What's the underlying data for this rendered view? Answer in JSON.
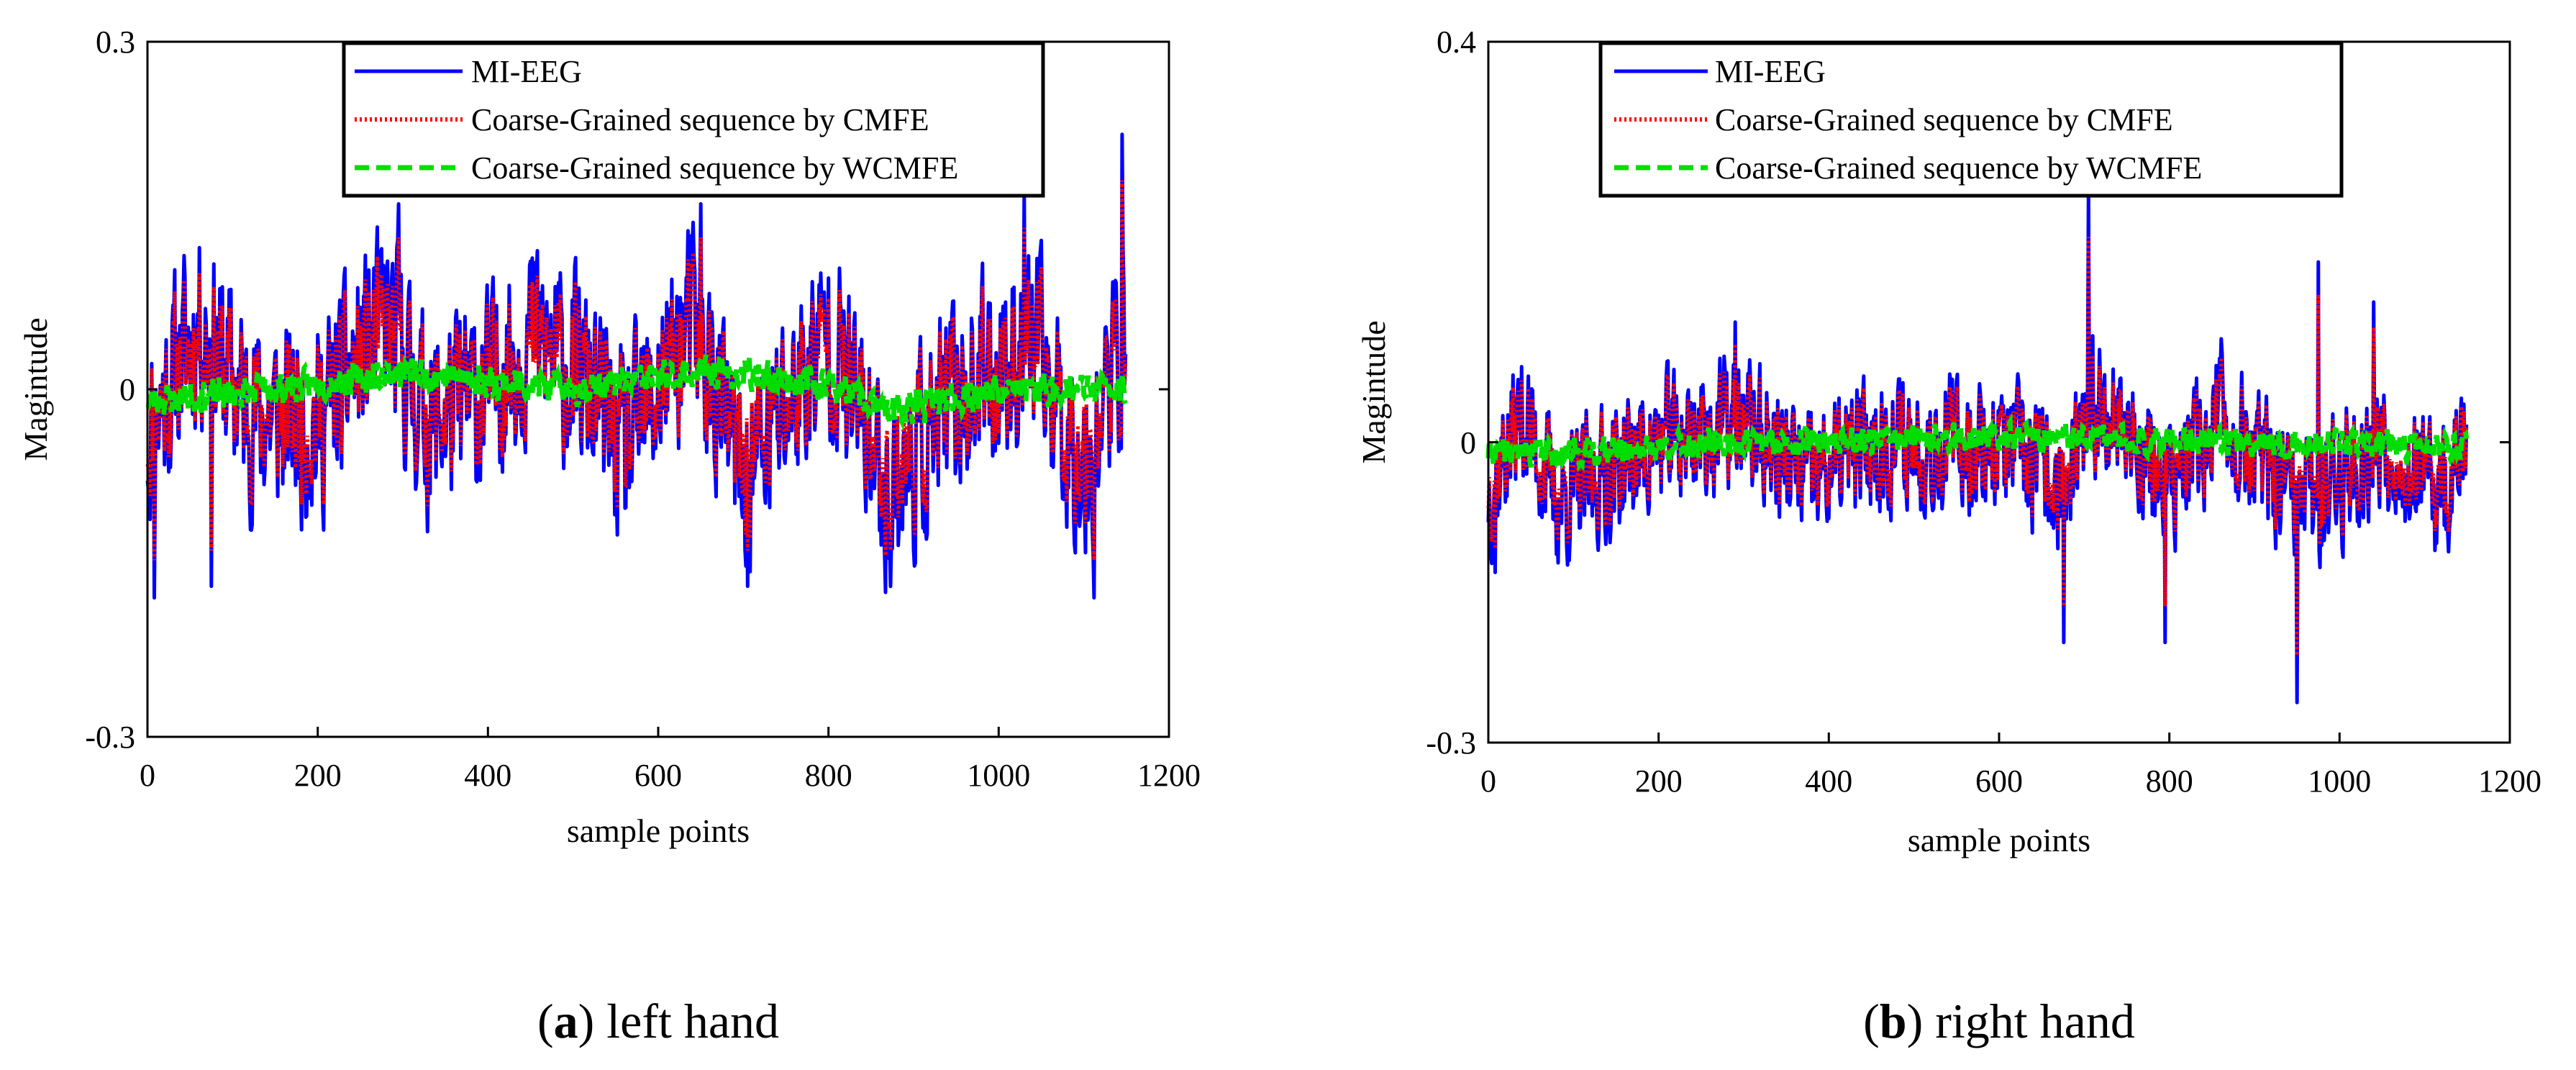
{
  "chart_data": [
    {
      "id": "a",
      "type": "line",
      "xlabel": "sample points",
      "ylabel": "Magintude",
      "xlim": [
        0,
        1200
      ],
      "ylim": [
        -0.3,
        0.3
      ],
      "xticks": [
        0,
        200,
        400,
        600,
        800,
        1000,
        1200
      ],
      "xtick_labels": [
        "0",
        "200",
        "400",
        "600",
        "800",
        "1000",
        "1200"
      ],
      "yticks": [
        -0.3,
        0,
        0.3
      ],
      "ytick_labels": [
        "-0.3",
        "0",
        "0.3"
      ],
      "legend_position": "top-center",
      "caption_letter": "a",
      "caption_text": "left hand",
      "series": [
        {
          "name": "MI-EEG",
          "color": "#0000ff",
          "style": "solid",
          "n_points": 1150,
          "seed": 11,
          "amplitude": 0.075,
          "envelope": [
            [
              0,
              -0.04
            ],
            [
              60,
              0.06
            ],
            [
              120,
              -0.02
            ],
            [
              200,
              -0.03
            ],
            [
              280,
              0.06
            ],
            [
              330,
              -0.03
            ],
            [
              400,
              0.0
            ],
            [
              450,
              0.05
            ],
            [
              520,
              0.0
            ],
            [
              560,
              -0.06
            ],
            [
              640,
              0.06
            ],
            [
              700,
              -0.08
            ],
            [
              800,
              0.05
            ],
            [
              870,
              -0.09
            ],
            [
              960,
              0.0
            ],
            [
              1040,
              0.04
            ],
            [
              1100,
              -0.07
            ],
            [
              1150,
              0.05
            ]
          ],
          "peaks": [
            [
              8,
              -0.18
            ],
            [
              75,
              -0.17
            ],
            [
              295,
              0.16
            ],
            [
              650,
              0.16
            ],
            [
              705,
              -0.17
            ],
            [
              1030,
              0.17
            ],
            [
              1112,
              -0.18
            ],
            [
              1145,
              0.22
            ]
          ]
        },
        {
          "name": "Coarse-Grained sequence by CMFE",
          "color": "#ff0000",
          "style": "dotted",
          "derived_from": "MI-EEG",
          "scale": 0.82
        },
        {
          "name": "Coarse-Grained sequence by WCMFE",
          "color": "#00dd00",
          "style": "dashed",
          "n_points": 1150,
          "seed": 23,
          "amplitude": 0.012,
          "envelope": [
            [
              0,
              -0.01
            ],
            [
              150,
              0.0
            ],
            [
              300,
              0.015
            ],
            [
              500,
              0.0
            ],
            [
              650,
              0.015
            ],
            [
              800,
              0.005
            ],
            [
              870,
              -0.02
            ],
            [
              1000,
              0.0
            ],
            [
              1150,
              0.0
            ]
          ]
        }
      ]
    },
    {
      "id": "b",
      "type": "line",
      "xlabel": "sample points",
      "ylabel": "Magintude",
      "xlim": [
        0,
        1200
      ],
      "ylim": [
        -0.3,
        0.4
      ],
      "xticks": [
        0,
        200,
        400,
        600,
        800,
        1000,
        1200
      ],
      "xtick_labels": [
        "0",
        "200",
        "400",
        "600",
        "800",
        "1000",
        "1200"
      ],
      "yticks": [
        -0.3,
        0,
        0.4
      ],
      "ytick_labels": [
        "-0.3",
        "0",
        "0.4"
      ],
      "legend_position": "top-center",
      "caption_letter": "b",
      "caption_text": "right hand",
      "series": [
        {
          "name": "MI-EEG",
          "color": "#0000ff",
          "style": "solid",
          "n_points": 1150,
          "seed": 37,
          "amplitude": 0.06,
          "envelope": [
            [
              0,
              -0.05
            ],
            [
              40,
              0.03
            ],
            [
              80,
              -0.06
            ],
            [
              200,
              0.0
            ],
            [
              300,
              0.02
            ],
            [
              380,
              -0.04
            ],
            [
              450,
              0.0
            ],
            [
              600,
              0.0
            ],
            [
              680,
              -0.05
            ],
            [
              720,
              0.05
            ],
            [
              800,
              -0.05
            ],
            [
              860,
              0.03
            ],
            [
              950,
              -0.07
            ],
            [
              1050,
              0.0
            ],
            [
              1120,
              -0.06
            ],
            [
              1150,
              0.0
            ]
          ],
          "peaks": [
            [
              8,
              -0.13
            ],
            [
              290,
              0.12
            ],
            [
              676,
              -0.2
            ],
            [
              705,
              0.25
            ],
            [
              795,
              -0.2
            ],
            [
              950,
              -0.26
            ],
            [
              975,
              0.18
            ],
            [
              1040,
              0.14
            ]
          ]
        },
        {
          "name": "Coarse-Grained sequence by CMFE",
          "color": "#ff0000",
          "style": "dotted",
          "derived_from": "MI-EEG",
          "scale": 0.82
        },
        {
          "name": "Coarse-Grained sequence by WCMFE",
          "color": "#00dd00",
          "style": "dashed",
          "n_points": 1150,
          "seed": 41,
          "amplitude": 0.012,
          "envelope": [
            [
              0,
              -0.01
            ],
            [
              100,
              -0.01
            ],
            [
              300,
              0.0
            ],
            [
              600,
              0.005
            ],
            [
              900,
              0.0
            ],
            [
              1150,
              -0.005
            ]
          ]
        }
      ]
    }
  ]
}
